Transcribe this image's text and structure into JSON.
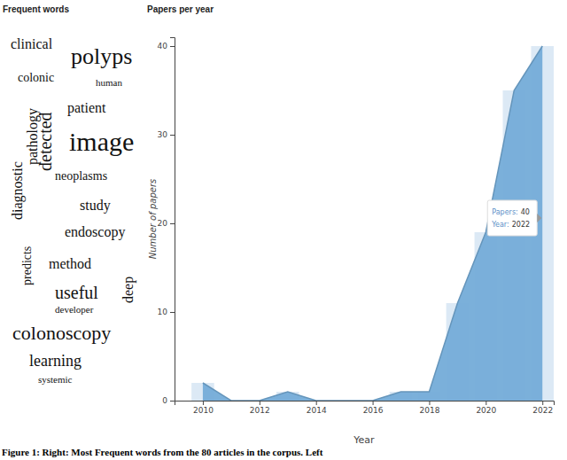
{
  "chart_data": [
    {
      "type": "wordcloud",
      "title": "Frequent words",
      "words": [
        "clinical",
        "polyps",
        "colonic",
        "human",
        "patient",
        "pathology",
        "detected",
        "diagnostic",
        "image",
        "neoplasms",
        "study",
        "endoscopy",
        "predicts",
        "method",
        "deep",
        "useful",
        "developer",
        "colonoscopy",
        "learning",
        "systemic"
      ],
      "weights": [
        16,
        26,
        14,
        11,
        16,
        16,
        20,
        16,
        30,
        14,
        16,
        16,
        14,
        16,
        16,
        20,
        11,
        22,
        18,
        11
      ],
      "color": "#111111"
    },
    {
      "type": "area",
      "title": "Papers per year",
      "x_label": "Year",
      "y_label": "Number of papers",
      "x": [
        2010,
        2011,
        2012,
        2013,
        2014,
        2015,
        2016,
        2017,
        2018,
        2019,
        2020,
        2021,
        2022
      ],
      "series": [
        {
          "type": "bar",
          "color": "#dce9f5",
          "values": [
            2,
            0,
            0,
            1,
            0,
            0,
            0,
            1,
            1,
            11,
            19,
            35,
            40
          ]
        },
        {
          "type": "area",
          "color": "#74acd8",
          "values": [
            2,
            0,
            0,
            1,
            0,
            0,
            0,
            1,
            1,
            11,
            19,
            35,
            40
          ]
        }
      ],
      "xlim": [
        2009,
        2022.4
      ],
      "xticks": [
        2010,
        2012,
        2014,
        2016,
        2018,
        2020,
        2022
      ],
      "ylim": [
        0,
        41
      ],
      "yticks": [
        0,
        10,
        20,
        30,
        40
      ],
      "grid": false,
      "annotations": [
        {
          "x": 2022,
          "rows": [
            {
              "label": "Papers:",
              "value": 40
            },
            {
              "label": "Year:",
              "value": 2022
            }
          ]
        }
      ]
    }
  ],
  "caption": "Figure 1: Right: Most Frequent words from the 80 articles in the corpus. Left"
}
